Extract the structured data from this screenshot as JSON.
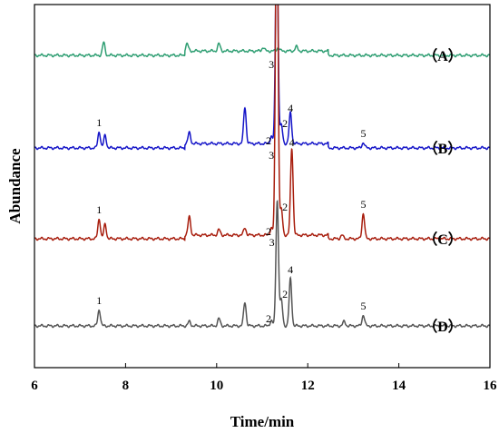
{
  "chart_data": {
    "type": "line",
    "title": "",
    "xlabel": "Time/min",
    "ylabel": "Abundance",
    "xlim": [
      6,
      16
    ],
    "xticks": [
      6,
      8,
      10,
      12,
      14,
      16
    ],
    "grid": false,
    "y_tick_labels": false,
    "series": [
      {
        "name": "（A）",
        "color": "#2e9e72",
        "baseline": 0.86,
        "peaks": [
          [
            7.52,
            0.035
          ],
          [
            9.35,
            0.02
          ],
          [
            10.05,
            0.02
          ],
          [
            11.02,
            0.01
          ],
          [
            11.35,
            0.01
          ],
          [
            11.75,
            0.012
          ]
        ],
        "step_ranges": [
          [
            9.3,
            12.45,
            0.012
          ]
        ],
        "peak_labels": []
      },
      {
        "name": "（B）",
        "color": "#1515c8",
        "baseline": 0.605,
        "peaks": [
          [
            7.42,
            0.045
          ],
          [
            7.55,
            0.035
          ],
          [
            9.4,
            0.03
          ],
          [
            10.62,
            0.1
          ],
          [
            11.2,
            0.02
          ],
          [
            11.32,
            0.6
          ],
          [
            11.42,
            0.05
          ],
          [
            11.62,
            0.085
          ],
          [
            13.22,
            0.015
          ]
        ],
        "step_ranges": [
          [
            9.3,
            12.45,
            0.012
          ]
        ],
        "peak_labels": [
          {
            "label": "1",
            "x": 7.42
          },
          {
            "label": "2",
            "x": 11.2
          },
          {
            "label": "3",
            "x": 11.32
          },
          {
            "label": "2",
            "x": 11.42
          },
          {
            "label": "4",
            "x": 11.62
          },
          {
            "label": "5",
            "x": 13.22
          }
        ]
      },
      {
        "name": "（C）",
        "color": "#a81e0e",
        "baseline": 0.355,
        "peaks": [
          [
            7.42,
            0.055
          ],
          [
            7.55,
            0.04
          ],
          [
            9.4,
            0.05
          ],
          [
            10.05,
            0.015
          ],
          [
            10.62,
            0.02
          ],
          [
            11.2,
            0.02
          ],
          [
            11.32,
            1.0
          ],
          [
            11.42,
            0.07
          ],
          [
            11.65,
            0.24
          ],
          [
            12.75,
            0.01
          ],
          [
            13.22,
            0.07
          ]
        ],
        "step_ranges": [
          [
            9.3,
            12.45,
            0.01
          ]
        ],
        "peak_labels": [
          {
            "label": "1",
            "x": 7.42
          },
          {
            "label": "2",
            "x": 11.2
          },
          {
            "label": "3",
            "x": 11.32
          },
          {
            "label": "2",
            "x": 11.42
          },
          {
            "label": "4",
            "x": 11.65
          },
          {
            "label": "5",
            "x": 13.22
          }
        ]
      },
      {
        "name": "（D）",
        "color": "#555555",
        "baseline": 0.115,
        "peaks": [
          [
            7.42,
            0.045
          ],
          [
            9.4,
            0.012
          ],
          [
            10.05,
            0.02
          ],
          [
            10.62,
            0.065
          ],
          [
            11.2,
            0.015
          ],
          [
            11.33,
            0.345
          ],
          [
            11.42,
            0.07
          ],
          [
            11.62,
            0.13
          ],
          [
            12.8,
            0.012
          ],
          [
            13.22,
            0.03
          ]
        ],
        "step_ranges": [],
        "peak_labels": [
          {
            "label": "1",
            "x": 7.42
          },
          {
            "label": "2",
            "x": 11.2
          },
          {
            "label": "3",
            "x": 11.33
          },
          {
            "label": "2",
            "x": 11.42
          },
          {
            "label": "4",
            "x": 11.62
          },
          {
            "label": "5",
            "x": 13.22
          }
        ]
      }
    ]
  }
}
